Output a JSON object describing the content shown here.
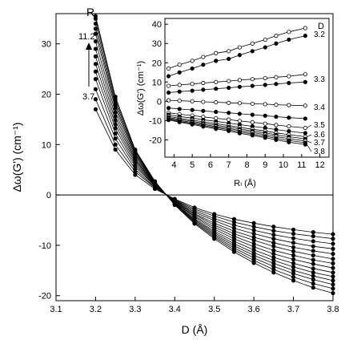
{
  "chart_data": [
    {
      "type": "line",
      "xlabel": "D (Å)",
      "ylabel": "Δω(G') (cm⁻¹)",
      "xlim": [
        3.1,
        3.8
      ],
      "ylim": [
        -21,
        36
      ],
      "xticks": [
        "3.1",
        "3.2",
        "3.3",
        "3.4",
        "3.5",
        "3.6",
        "3.7",
        "3.8"
      ],
      "yticks": [
        "-20",
        "-10",
        "0",
        "10",
        "20",
        "30"
      ],
      "annotation": {
        "label": "R",
        "subscript": "l",
        "top": "11.2",
        "bottom": "3.7"
      },
      "d_values": [
        3.2,
        3.25,
        3.3,
        3.35,
        3.4,
        3.45,
        3.5,
        3.55,
        3.6,
        3.65,
        3.7,
        3.75,
        3.8
      ],
      "series": [
        {
          "values": [
            17,
            9,
            4,
            1.2,
            -0.8,
            -2.5,
            -3.8,
            -4.8,
            -5.6,
            -6.3,
            -6.9,
            -7.4,
            -7.8
          ]
        },
        {
          "values": [
            19,
            10,
            4.6,
            1.4,
            -0.9,
            -2.8,
            -4.2,
            -5.4,
            -6.3,
            -7.1,
            -7.7,
            -8.2,
            -8.7
          ]
        },
        {
          "values": [
            21,
            11.2,
            5.1,
            1.5,
            -1.0,
            -3.1,
            -4.7,
            -6.0,
            -7.0,
            -7.9,
            -8.6,
            -9.2,
            -9.7
          ]
        },
        {
          "values": [
            23,
            12.2,
            5.6,
            1.7,
            -1.1,
            -3.4,
            -5.1,
            -6.6,
            -7.7,
            -8.7,
            -9.5,
            -10.2,
            -10.7
          ]
        },
        {
          "values": [
            24.5,
            13.2,
            6.0,
            1.8,
            -1.2,
            -3.7,
            -5.6,
            -7.2,
            -8.4,
            -9.5,
            -10.4,
            -11.1,
            -11.7
          ]
        },
        {
          "values": [
            26,
            14,
            6.4,
            1.9,
            -1.3,
            -3.9,
            -6.0,
            -7.7,
            -9.0,
            -10.2,
            -11.2,
            -12.0,
            -12.7
          ]
        },
        {
          "values": [
            27.5,
            14.8,
            6.8,
            2.0,
            -1.4,
            -4.2,
            -6.4,
            -8.2,
            -9.7,
            -11.0,
            -12.0,
            -12.9,
            -13.6
          ]
        },
        {
          "values": [
            29,
            15.6,
            7.1,
            2.1,
            -1.5,
            -4.4,
            -6.8,
            -8.7,
            -10.3,
            -11.7,
            -12.8,
            -13.7,
            -14.5
          ]
        },
        {
          "values": [
            30.5,
            16.4,
            7.5,
            2.2,
            -1.6,
            -4.7,
            -7.2,
            -9.2,
            -10.9,
            -12.4,
            -13.6,
            -14.6,
            -15.4
          ]
        },
        {
          "values": [
            32,
            17.2,
            7.9,
            2.3,
            -1.7,
            -4.9,
            -7.5,
            -9.7,
            -11.5,
            -13.0,
            -14.3,
            -15.4,
            -16.2
          ]
        },
        {
          "values": [
            33,
            17.8,
            8.2,
            2.4,
            -1.8,
            -5.1,
            -7.8,
            -10.1,
            -12.0,
            -13.6,
            -15.0,
            -16.1,
            -17.0
          ]
        },
        {
          "values": [
            34,
            18.4,
            8.5,
            2.5,
            -1.8,
            -5.3,
            -8.1,
            -10.5,
            -12.5,
            -14.2,
            -15.6,
            -16.8,
            -17.8
          ]
        },
        {
          "values": [
            35,
            19.0,
            8.8,
            2.6,
            -1.9,
            -5.5,
            -8.4,
            -10.9,
            -13.0,
            -14.8,
            -16.3,
            -17.6,
            -18.6
          ]
        },
        {
          "values": [
            35.5,
            19.5,
            9.0,
            2.7,
            -2.0,
            -5.7,
            -8.7,
            -11.3,
            -13.5,
            -15.4,
            -17.0,
            -18.4,
            -19.5
          ]
        }
      ]
    },
    {
      "type": "line",
      "xlabel": "Rₗ (Å)",
      "ylabel": "Δω(G') (cm⁻¹)",
      "xlim": [
        3.5,
        12.5
      ],
      "ylim": [
        -29,
        43
      ],
      "xticks": [
        "4",
        "5",
        "6",
        "7",
        "8",
        "9",
        "10",
        "11",
        "12"
      ],
      "yticks": [
        "-20",
        "-10",
        "0",
        "10",
        "20",
        "30",
        "40"
      ],
      "legend_title": "D",
      "r_values": [
        3.7,
        4.3,
        5.0,
        5.6,
        6.3,
        7.0,
        7.6,
        8.3,
        9.0,
        9.6,
        10.3,
        11.2
      ],
      "series": [
        {
          "name": "3.2",
          "open": true,
          "values": [
            17,
            19,
            21,
            23,
            25,
            26,
            28,
            30,
            32,
            34,
            36,
            38
          ]
        },
        {
          "name": "",
          "open": false,
          "values": [
            13,
            15,
            17,
            19,
            21,
            22,
            24,
            26,
            28,
            30,
            32,
            34
          ]
        },
        {
          "name": "3.3",
          "open": true,
          "values": [
            8,
            8.5,
            9,
            9.5,
            10,
            10.5,
            11,
            11.5,
            12,
            12.5,
            13,
            14
          ]
        },
        {
          "name": "",
          "open": false,
          "values": [
            4.5,
            5,
            5.5,
            6,
            6.5,
            7,
            7.5,
            8,
            8.5,
            9,
            9.5,
            10
          ]
        },
        {
          "name": "3.4",
          "open": true,
          "values": [
            0.5,
            0.3,
            0,
            -0.3,
            -0.5,
            -0.8,
            -1.0,
            -1.3,
            -1.5,
            -1.8,
            -2.0,
            -2.3
          ]
        },
        {
          "name": "",
          "open": false,
          "values": [
            -3.5,
            -4.0,
            -4.5,
            -5.0,
            -5.5,
            -6.0,
            -6.5,
            -7.0,
            -7.5,
            -8.0,
            -8.5,
            -9.0
          ]
        },
        {
          "name": "3.5",
          "open": true,
          "values": [
            -6,
            -6.7,
            -7.4,
            -8.1,
            -8.8,
            -9.5,
            -10.2,
            -10.9,
            -11.6,
            -12.3,
            -13.0,
            -13.8
          ]
        },
        {
          "name": "",
          "open": false,
          "values": [
            -7,
            -7.9,
            -8.7,
            -9.6,
            -10.4,
            -11.3,
            -12.1,
            -13.0,
            -13.8,
            -14.7,
            -15.5,
            -16.5
          ]
        },
        {
          "name": "3.6",
          "open": true,
          "values": [
            -7.8,
            -8.8,
            -9.7,
            -10.7,
            -11.6,
            -12.6,
            -13.5,
            -14.5,
            -15.4,
            -16.4,
            -17.3,
            -18.4
          ]
        },
        {
          "name": "",
          "open": false,
          "values": [
            -8.4,
            -9.4,
            -10.4,
            -11.4,
            -12.4,
            -13.4,
            -14.4,
            -15.4,
            -16.4,
            -17.4,
            -18.4,
            -19.5
          ]
        },
        {
          "name": "3.7",
          "open": true,
          "values": [
            -8.9,
            -9.9,
            -11.0,
            -12.0,
            -13.1,
            -14.1,
            -15.2,
            -16.2,
            -17.3,
            -18.3,
            -19.4,
            -20.6
          ]
        },
        {
          "name": "",
          "open": false,
          "values": [
            -9.3,
            -10.4,
            -11.5,
            -12.6,
            -13.7,
            -14.8,
            -15.9,
            -17.0,
            -18.1,
            -19.2,
            -20.3,
            -21.5
          ]
        },
        {
          "name": "3.8",
          "open": false,
          "values": [
            -9.7,
            -10.8,
            -12.0,
            -13.1,
            -14.3,
            -15.4,
            -16.6,
            -17.7,
            -18.9,
            -20.0,
            -21.2,
            -22.4
          ]
        }
      ]
    }
  ]
}
